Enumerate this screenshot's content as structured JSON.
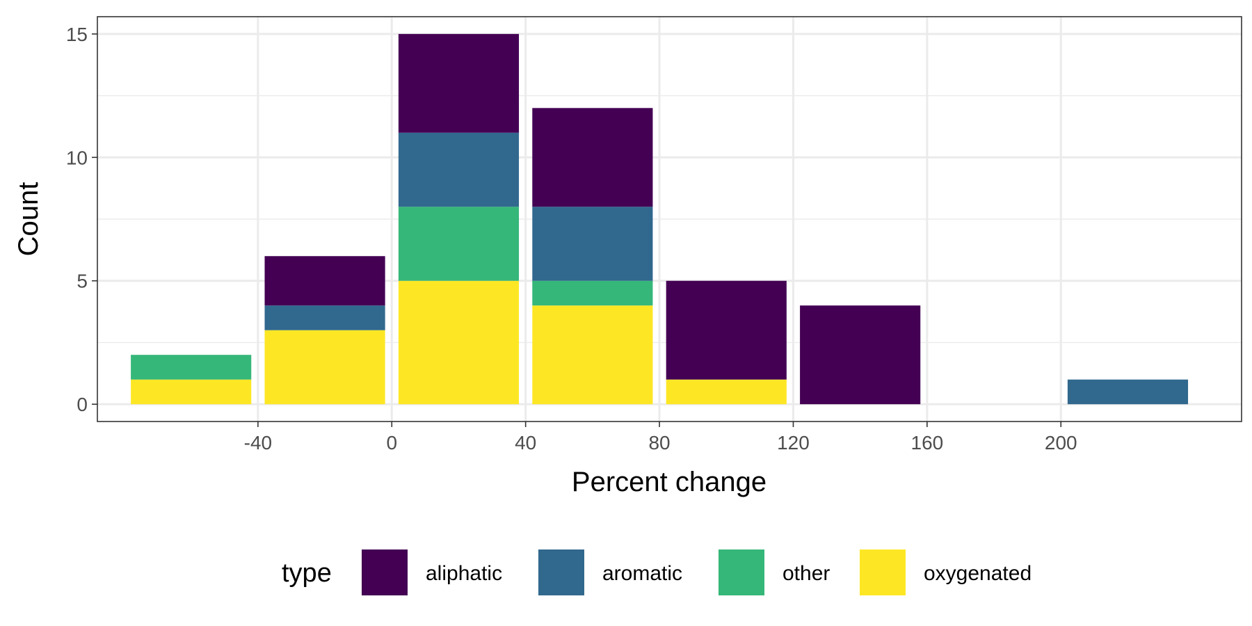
{
  "chart_data": {
    "type": "bar",
    "stacked": true,
    "x_axis": {
      "label": "Percent change",
      "range": [
        -88,
        254
      ],
      "ticks": [
        -40,
        0,
        40,
        80,
        120,
        160,
        200
      ],
      "tick_labels": [
        "-40",
        "0",
        "40",
        "80",
        "120",
        "160",
        "200"
      ]
    },
    "y_axis": {
      "label": "Count",
      "range": [
        -0.7,
        15.7
      ],
      "ticks": [
        0,
        5,
        10,
        15
      ],
      "tick_labels": [
        "0",
        "5",
        "10",
        "15"
      ],
      "minor_ticks": [
        2.5,
        7.5,
        12.5
      ]
    },
    "bins": [
      {
        "x_start": -78,
        "x_end": -42,
        "counts": {
          "aliphatic": 0,
          "aromatic": 0,
          "other": 1,
          "oxygenated": 1
        }
      },
      {
        "x_start": -38,
        "x_end": -2,
        "counts": {
          "aliphatic": 2,
          "aromatic": 1,
          "other": 0,
          "oxygenated": 3
        }
      },
      {
        "x_start": 2,
        "x_end": 38,
        "counts": {
          "aliphatic": 4,
          "aromatic": 3,
          "other": 3,
          "oxygenated": 5
        }
      },
      {
        "x_start": 42,
        "x_end": 78,
        "counts": {
          "aliphatic": 4,
          "aromatic": 3,
          "other": 1,
          "oxygenated": 4
        }
      },
      {
        "x_start": 82,
        "x_end": 118,
        "counts": {
          "aliphatic": 4,
          "aromatic": 0,
          "other": 0,
          "oxygenated": 1
        }
      },
      {
        "x_start": 122,
        "x_end": 158,
        "counts": {
          "aliphatic": 4,
          "aromatic": 0,
          "other": 0,
          "oxygenated": 0
        }
      },
      {
        "x_start": 202,
        "x_end": 238,
        "counts": {
          "aliphatic": 0,
          "aromatic": 1,
          "other": 0,
          "oxygenated": 0
        }
      }
    ],
    "stack_order_bottom_to_top": [
      "oxygenated",
      "other",
      "aromatic",
      "aliphatic"
    ],
    "legend": {
      "title": "type",
      "placement": "bottom",
      "items": [
        "aliphatic",
        "aromatic",
        "other",
        "oxygenated"
      ]
    },
    "colors": {
      "aliphatic": "#440154",
      "aromatic": "#31688E",
      "other": "#35B779",
      "oxygenated": "#FDE725"
    },
    "grid": true,
    "theme": "bw"
  }
}
